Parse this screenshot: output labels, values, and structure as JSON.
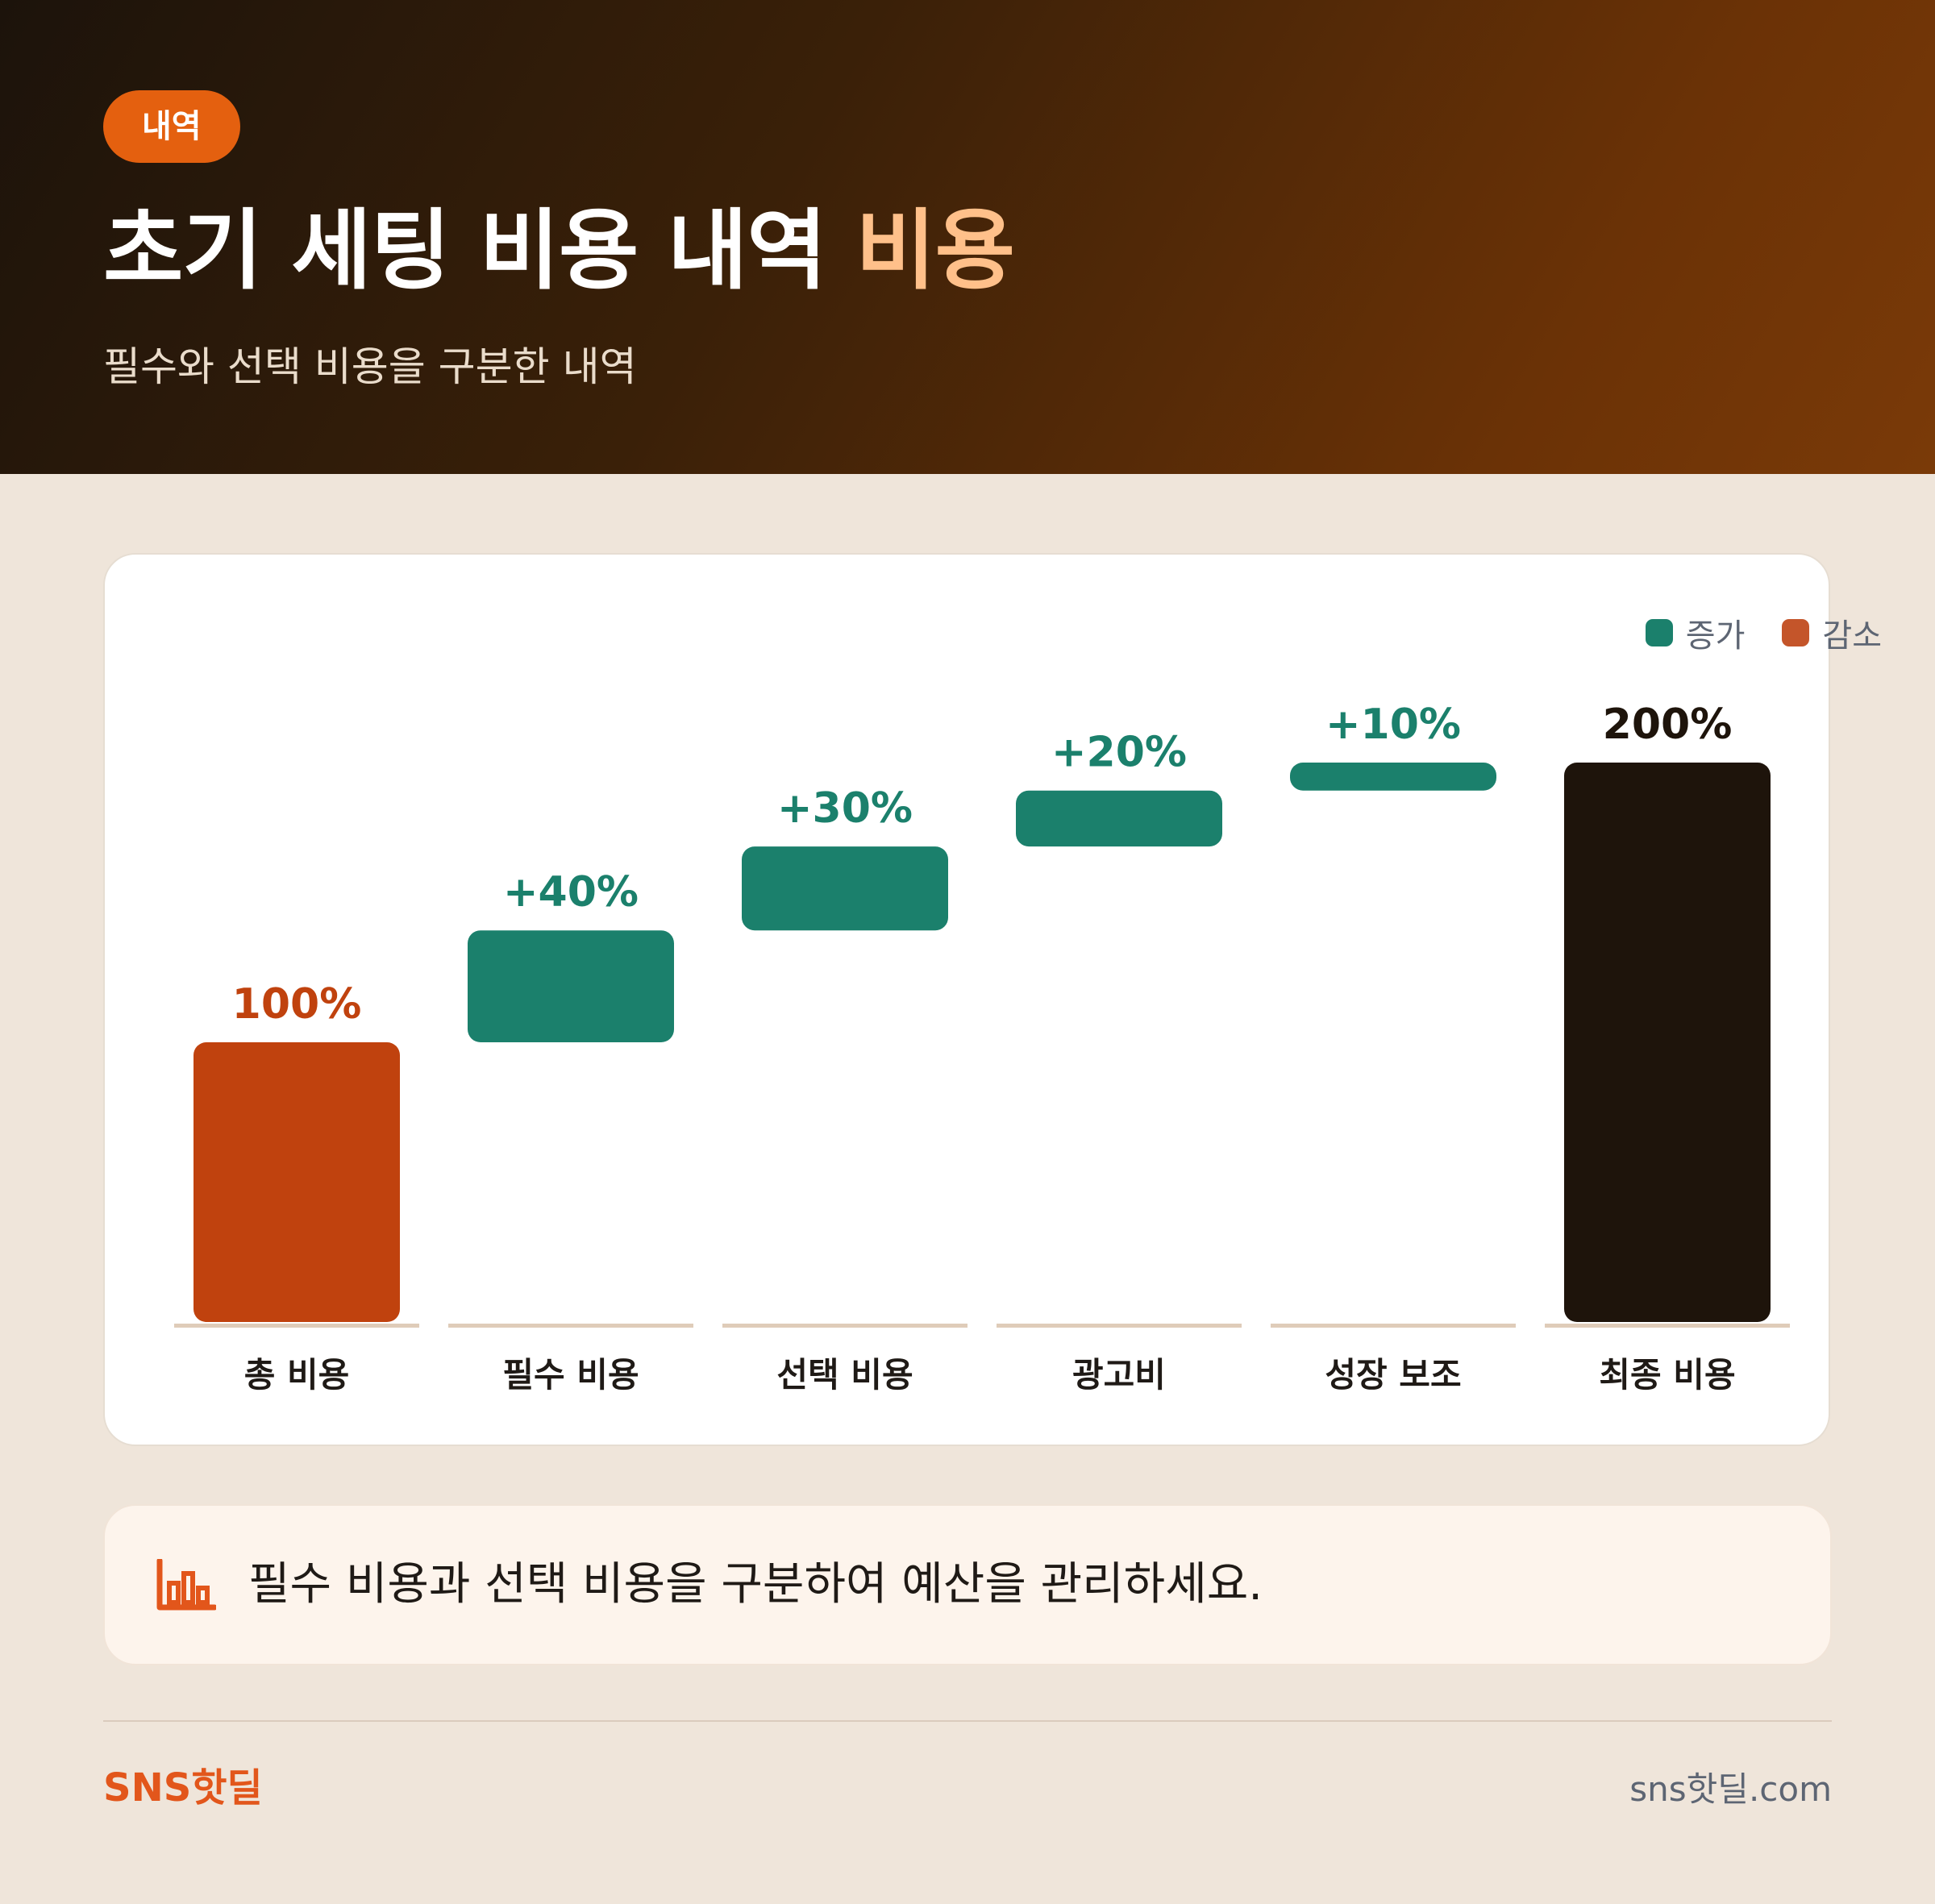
{
  "header": {
    "badge": "내역",
    "title_main": "초기 세팅 비용 내역",
    "title_accent": "비용",
    "subtitle": "필수와 선택 비용을 구분한 내역"
  },
  "legend": {
    "increase_label": "증가",
    "decrease_label": "감소"
  },
  "colors": {
    "increase": "#1b806c",
    "start": "#c0420e",
    "total": "#1e140b",
    "accent": "#e4600f"
  },
  "chart_data": {
    "type": "waterfall",
    "title": "",
    "xlabel": "",
    "ylabel": "",
    "ylim": [
      0,
      200
    ],
    "grid": false,
    "legend": "top-right",
    "categories": [
      "총 비용",
      "필수 비용",
      "선택 비용",
      "광고비",
      "성장 보조",
      "최종 비용"
    ],
    "values": [
      100,
      40,
      30,
      20,
      10,
      200
    ],
    "kinds": [
      "start",
      "increase",
      "increase",
      "increase",
      "increase",
      "total"
    ],
    "labels": [
      "100%",
      "+40%",
      "+30%",
      "+20%",
      "+10%",
      "200%"
    ]
  },
  "insight": {
    "icon": "bar-chart-icon",
    "text": "필수 비용과 선택 비용을 구분하여 예산을 관리하세요."
  },
  "footer": {
    "brand": "SNS핫딜",
    "site": "sns핫딜.com"
  }
}
